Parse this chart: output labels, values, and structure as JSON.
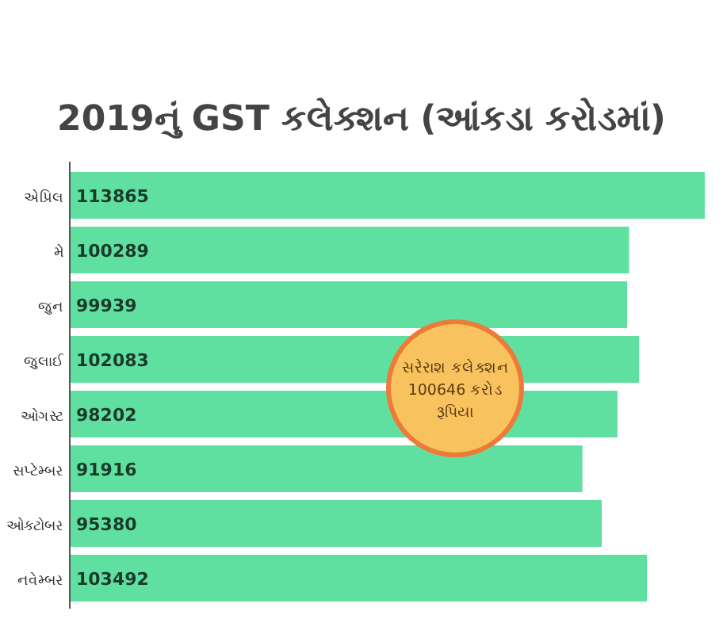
{
  "chart_data": {
    "type": "bar",
    "orientation": "horizontal",
    "title": "2019નું GST કલેક્શન (આંકડા કરોડમાં)",
    "categories": [
      "એપ્રિલ",
      "મે",
      "જુન",
      "જુલાઈ",
      "ઓગસ્ટ",
      "સપ્ટેમ્બર",
      "ઓક્ટોબર",
      "નવેમ્બર"
    ],
    "values": [
      113865,
      100289,
      99939,
      102083,
      98202,
      91916,
      95380,
      103492
    ],
    "color": "#5fe0a0",
    "xlim": [
      0,
      114000
    ],
    "data_labels": true,
    "annotations": [
      "સરેરાશ કલેક્શન 100646 કરોડ રૂપિયા"
    ]
  }
}
